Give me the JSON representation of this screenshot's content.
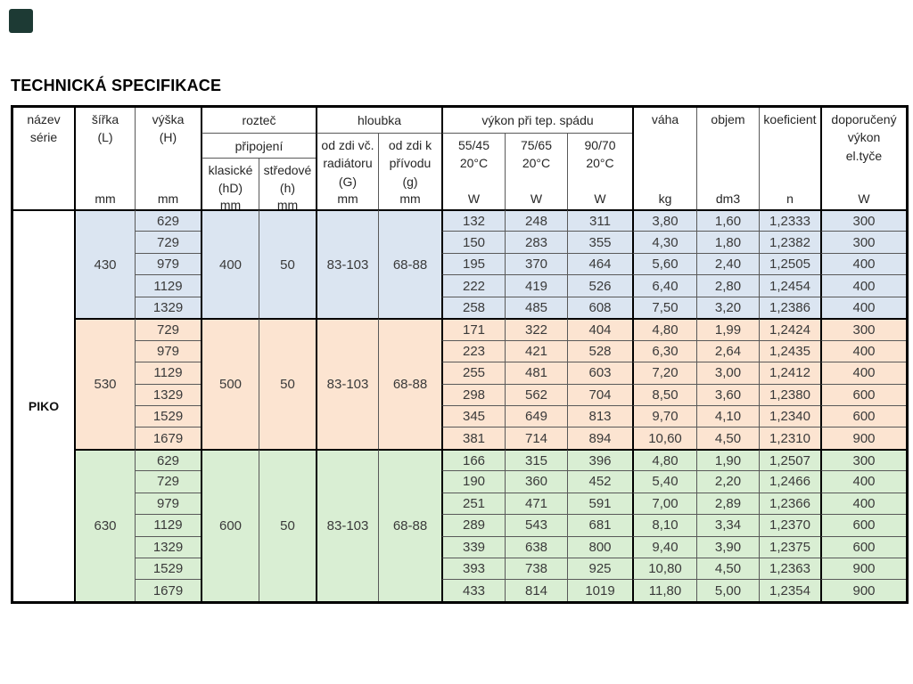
{
  "title": "TECHNICKÁ SPECIFIKACE",
  "series_name": "PIKO",
  "colors": {
    "corner_marker": "#1d3a34",
    "group_blue": "#dbe5f1",
    "group_orange": "#fce4d1",
    "group_green": "#d9eed3",
    "border_thin": "#595959",
    "border_thick": "#000000"
  },
  "header": {
    "nazev_serie": "název\nsérie",
    "sirka": "šířka\n(L)",
    "sirka_unit": "mm",
    "vyska": "výška\n(H)",
    "vyska_unit": "mm",
    "roztec": "rozteč",
    "pripojeni": "připojení",
    "klasicke": "klasické\n(hD)",
    "klasicke_unit": "mm",
    "stredove": "středové\n(h)",
    "stredove_unit": "mm",
    "hloubka": "hloubka",
    "od_zdi_vc": "od zdi vč.\nradiátoru\n(G)",
    "od_zdi_vc_unit": "mm",
    "od_zdi_k": "od zdi k\npřívodu\n(g)",
    "od_zdi_k_unit": "mm",
    "vykon_pri_tep_spadu": "výkon při tep.  spádu",
    "spad_55_45": "55/45\n20°C",
    "spad_55_45_unit": "W",
    "spad_75_65": "75/65\n20°C",
    "spad_75_65_unit": "W",
    "spad_90_70": "90/70\n20°C",
    "spad_90_70_unit": "W",
    "vaha": "váha",
    "vaha_unit": "kg",
    "objem": "objem",
    "objem_unit": "dm3",
    "koeficient": "koeficient",
    "koeficient_unit": "n",
    "doporuceny": "doporučený\nvýkon\nel.tyče",
    "doporuceny_unit": "W"
  },
  "row_columns": [
    "vyska_mm",
    "vykon_55_45_W",
    "vykon_75_65_W",
    "vykon_90_70_W",
    "vaha_kg",
    "objem_dm3",
    "koeficient_n",
    "doporuceny_vykon_W"
  ],
  "groups": [
    {
      "sirka_mm": "430",
      "roztec_klasicke_mm": "400",
      "roztec_stredove_mm": "50",
      "hloubka_od_zdi_vc_mm": "83-103",
      "hloubka_od_zdi_k_mm": "68-88",
      "color": "#dbe5f1",
      "rows": [
        [
          "629",
          "132",
          "248",
          "311",
          "3,80",
          "1,60",
          "1,2333",
          "300"
        ],
        [
          "729",
          "150",
          "283",
          "355",
          "4,30",
          "1,80",
          "1,2382",
          "300"
        ],
        [
          "979",
          "195",
          "370",
          "464",
          "5,60",
          "2,40",
          "1,2505",
          "400"
        ],
        [
          "1129",
          "222",
          "419",
          "526",
          "6,40",
          "2,80",
          "1,2454",
          "400"
        ],
        [
          "1329",
          "258",
          "485",
          "608",
          "7,50",
          "3,20",
          "1,2386",
          "400"
        ]
      ]
    },
    {
      "sirka_mm": "530",
      "roztec_klasicke_mm": "500",
      "roztec_stredove_mm": "50",
      "hloubka_od_zdi_vc_mm": "83-103",
      "hloubka_od_zdi_k_mm": "68-88",
      "color": "#fce4d1",
      "rows": [
        [
          "729",
          "171",
          "322",
          "404",
          "4,80",
          "1,99",
          "1,2424",
          "300"
        ],
        [
          "979",
          "223",
          "421",
          "528",
          "6,30",
          "2,64",
          "1,2435",
          "400"
        ],
        [
          "1129",
          "255",
          "481",
          "603",
          "7,20",
          "3,00",
          "1,2412",
          "400"
        ],
        [
          "1329",
          "298",
          "562",
          "704",
          "8,50",
          "3,60",
          "1,2380",
          "600"
        ],
        [
          "1529",
          "345",
          "649",
          "813",
          "9,70",
          "4,10",
          "1,2340",
          "600"
        ],
        [
          "1679",
          "381",
          "714",
          "894",
          "10,60",
          "4,50",
          "1,2310",
          "900"
        ]
      ]
    },
    {
      "sirka_mm": "630",
      "roztec_klasicke_mm": "600",
      "roztec_stredove_mm": "50",
      "hloubka_od_zdi_vc_mm": "83-103",
      "hloubka_od_zdi_k_mm": "68-88",
      "color": "#d9eed3",
      "rows": [
        [
          "629",
          "166",
          "315",
          "396",
          "4,80",
          "1,90",
          "1,2507",
          "300"
        ],
        [
          "729",
          "190",
          "360",
          "452",
          "5,40",
          "2,20",
          "1,2466",
          "400"
        ],
        [
          "979",
          "251",
          "471",
          "591",
          "7,00",
          "2,89",
          "1,2366",
          "400"
        ],
        [
          "1129",
          "289",
          "543",
          "681",
          "8,10",
          "3,34",
          "1,2370",
          "600"
        ],
        [
          "1329",
          "339",
          "638",
          "800",
          "9,40",
          "3,90",
          "1,2375",
          "600"
        ],
        [
          "1529",
          "393",
          "738",
          "925",
          "10,80",
          "4,50",
          "1,2363",
          "900"
        ],
        [
          "1679",
          "433",
          "814",
          "1019",
          "11,80",
          "5,00",
          "1,2354",
          "900"
        ]
      ]
    }
  ]
}
